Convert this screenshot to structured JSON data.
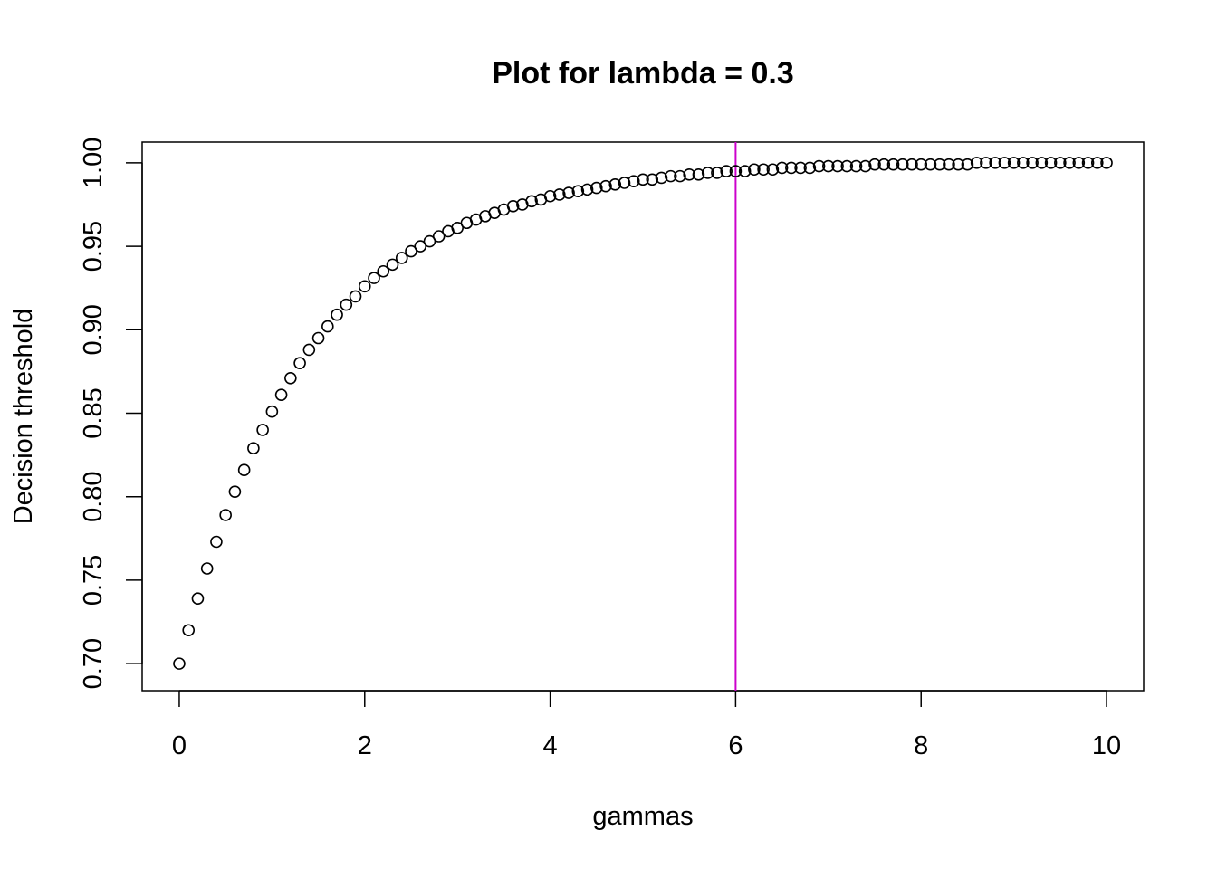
{
  "chart_data": {
    "type": "scatter",
    "title": "Plot for lambda = 0.3",
    "xlabel": "gammas",
    "ylabel": "Decision threshold",
    "xlim": [
      -0.4,
      10.4
    ],
    "ylim": [
      0.6838,
      1.0124
    ],
    "x_ticks": [
      0,
      2,
      4,
      6,
      8,
      10
    ],
    "x_tick_labels": [
      "0",
      "2",
      "4",
      "6",
      "8",
      "10"
    ],
    "y_ticks": [
      0.7,
      0.75,
      0.8,
      0.85,
      0.9,
      0.95,
      1.0
    ],
    "y_tick_labels": [
      "0.70",
      "0.75",
      "0.80",
      "0.85",
      "0.90",
      "0.95",
      "1.00"
    ],
    "grid": false,
    "legend": "none",
    "reference_line": {
      "orientation": "vertical",
      "x": 6,
      "color": "#CC00CC"
    },
    "marker": {
      "shape": "open-circle",
      "color": "#000000"
    },
    "x": [
      0,
      0.1,
      0.2,
      0.3,
      0.4,
      0.5,
      0.6,
      0.7,
      0.8,
      0.9,
      1.0,
      1.1,
      1.2,
      1.3,
      1.4,
      1.5,
      1.6,
      1.7,
      1.8,
      1.9,
      2.0,
      2.1,
      2.2,
      2.3,
      2.4,
      2.5,
      2.6,
      2.7,
      2.8,
      2.9,
      3.0,
      3.1,
      3.2,
      3.3,
      3.4,
      3.5,
      3.6,
      3.7,
      3.8,
      3.9,
      4.0,
      4.1,
      4.2,
      4.3,
      4.4,
      4.5,
      4.6,
      4.7,
      4.8,
      4.9,
      5.0,
      5.1,
      5.2,
      5.3,
      5.4,
      5.5,
      5.6,
      5.7,
      5.8,
      5.9,
      6.0,
      6.1,
      6.2,
      6.3,
      6.4,
      6.5,
      6.6,
      6.7,
      6.8,
      6.9,
      7.0,
      7.1,
      7.2,
      7.3,
      7.4,
      7.5,
      7.6,
      7.7,
      7.8,
      7.9,
      8.0,
      8.1,
      8.2,
      8.3,
      8.4,
      8.5,
      8.6,
      8.7,
      8.8,
      8.9,
      9.0,
      9.1,
      9.2,
      9.3,
      9.4,
      9.5,
      9.6,
      9.7,
      9.8,
      9.9,
      10.0
    ],
    "y": [
      0.7,
      0.72,
      0.739,
      0.757,
      0.773,
      0.789,
      0.803,
      0.816,
      0.829,
      0.84,
      0.851,
      0.861,
      0.871,
      0.88,
      0.888,
      0.895,
      0.902,
      0.909,
      0.915,
      0.92,
      0.926,
      0.931,
      0.935,
      0.939,
      0.943,
      0.947,
      0.95,
      0.953,
      0.956,
      0.959,
      0.961,
      0.964,
      0.966,
      0.968,
      0.97,
      0.972,
      0.974,
      0.975,
      0.977,
      0.978,
      0.98,
      0.981,
      0.982,
      0.983,
      0.984,
      0.985,
      0.986,
      0.987,
      0.988,
      0.989,
      0.99,
      0.99,
      0.991,
      0.992,
      0.992,
      0.993,
      0.993,
      0.994,
      0.994,
      0.995,
      0.995,
      0.995,
      0.996,
      0.996,
      0.996,
      0.997,
      0.997,
      0.997,
      0.997,
      0.998,
      0.998,
      0.998,
      0.998,
      0.998,
      0.998,
      0.999,
      0.999,
      0.999,
      0.999,
      0.999,
      0.999,
      0.999,
      0.999,
      0.999,
      0.999,
      0.999,
      1.0,
      1.0,
      1.0,
      1.0,
      1.0,
      1.0,
      1.0,
      1.0,
      1.0,
      1.0,
      1.0,
      1.0,
      1.0,
      1.0,
      1.0
    ]
  }
}
